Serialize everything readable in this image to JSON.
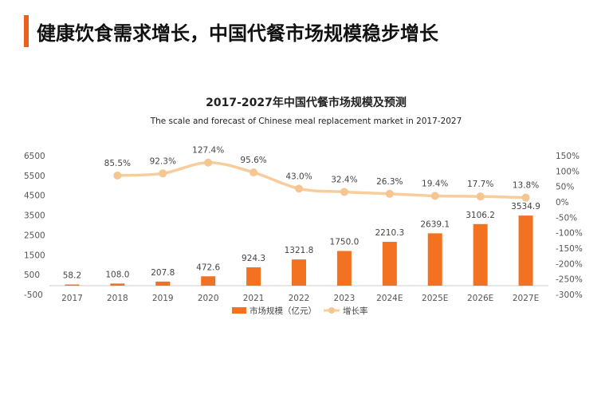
{
  "page": {
    "heading": "健康饮食需求增长，中国代餐市场规模稳步增长"
  },
  "colors": {
    "accent": "#e8601c",
    "bar": "#f27221",
    "line": "#f7cd9c",
    "point": "#f6c690"
  },
  "chart_data": {
    "type": "bar",
    "title": "2017-2027年中国代餐市场规模及预测",
    "subtitle": "The scale and forecast of Chinese meal replacement market in 2017-2027",
    "categories": [
      "2017",
      "2018",
      "2019",
      "2020",
      "2021",
      "2022",
      "2023",
      "2024E",
      "2025E",
      "2026E",
      "2027E"
    ],
    "series": [
      {
        "name": "市场规模（亿元）",
        "type": "bar",
        "axis": "left",
        "values": [
          58.2,
          108.0,
          207.8,
          472.6,
          924.3,
          1321.8,
          1750.0,
          2210.3,
          2639.1,
          3106.2,
          3534.9
        ],
        "labels": [
          "58.2",
          "108.0",
          "207.8",
          "472.6",
          "924.3",
          "1321.8",
          "1750.0",
          "2210.3",
          "2639.1",
          "3106.2",
          "3534.9"
        ]
      },
      {
        "name": "增长率",
        "type": "line",
        "axis": "right",
        "values": [
          null,
          85.5,
          92.3,
          127.4,
          95.6,
          43.0,
          32.4,
          26.3,
          19.4,
          17.7,
          13.8
        ],
        "labels": [
          null,
          "85.5%",
          "92.3%",
          "127.4%",
          "95.6%",
          "43.0%",
          "32.4%",
          "26.3%",
          "19.4%",
          "17.7%",
          "13.8%"
        ]
      }
    ],
    "y_left": {
      "range": [
        -500,
        6500
      ],
      "ticks": [
        "6500",
        "5500",
        "4500",
        "3500",
        "2500",
        "1500",
        "500",
        "-500"
      ]
    },
    "y_right": {
      "range": [
        -300,
        150
      ],
      "ticks": [
        "150%",
        "100%",
        "50%",
        "0%",
        "-50%",
        "-100%",
        "-150%",
        "-200%",
        "-250%",
        "-300%"
      ]
    },
    "grid": false,
    "legend": "bottom-center"
  }
}
